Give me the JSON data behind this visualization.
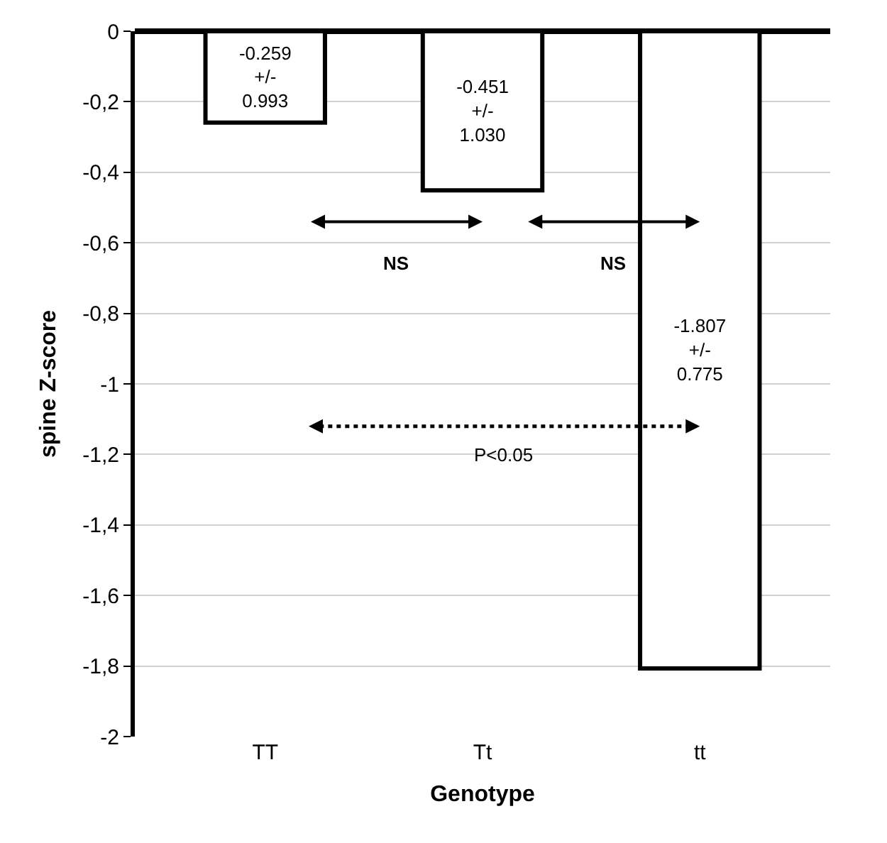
{
  "chart_data": {
    "type": "bar",
    "categories": [
      "TT",
      "Tt",
      "tt"
    ],
    "series": [
      {
        "color": "#ffffff",
        "values": [
          -0.259,
          -0.451,
          -1.807
        ]
      }
    ],
    "value_labels": [
      "-0.259\n+/-\n0.993",
      "-0.451\n+/-\n1.030",
      "-1.807\n+/-\n0.775"
    ],
    "xlabel": "Genotype",
    "ylabel": "spine Z-score",
    "ylim": [
      -2,
      0
    ],
    "yticks": [
      0,
      {
        "value": -0.2,
        "label": "-0,2"
      },
      {
        "value": -0.4,
        "label": "-0,4"
      },
      {
        "value": -0.6,
        "label": "-0,6"
      },
      {
        "value": -0.8,
        "label": "-0,8"
      },
      -1,
      {
        "value": -1.2,
        "label": "-1,2"
      },
      {
        "value": -1.4,
        "label": "-1,4"
      },
      {
        "value": -1.6,
        "label": "-1,6"
      },
      {
        "value": -1.8,
        "label": "-1,8"
      },
      -2
    ],
    "grid": "y",
    "legend": false,
    "annotations": [
      "NS",
      "NS",
      "P<0.05"
    ]
  }
}
